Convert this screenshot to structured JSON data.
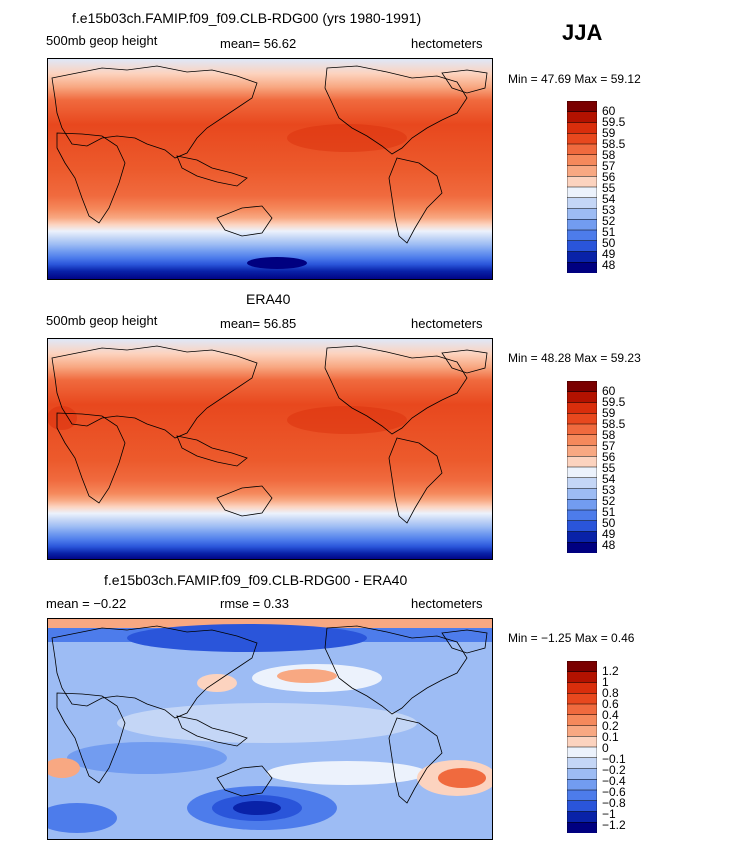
{
  "season": "JJA",
  "panels": [
    {
      "title": "f.e15b03ch.FAMIP.f09_f09.CLB-RDG00 (yrs 1980-1991)",
      "left_label": "500mb geop height",
      "mid_label": "mean=  56.62",
      "units": "hectometers",
      "minmax": "Min =  47.69 Max =  59.12",
      "colorbar": [
        "60",
        "59.5",
        "59",
        "58.5",
        "58",
        "57",
        "56",
        "55",
        "54",
        "53",
        "52",
        "51",
        "50",
        "49",
        "48"
      ],
      "colors": [
        "#7a0000",
        "#b31200",
        "#d92e0c",
        "#e8481e",
        "#f06a3e",
        "#f5895c",
        "#f8a882",
        "#fcd3bf",
        "#ecf2fc",
        "#c4d6f6",
        "#9dbcf4",
        "#729cf0",
        "#4d7ceb",
        "#2a55da",
        "#0922a8",
        "#000080"
      ]
    },
    {
      "title": "ERA40",
      "left_label": "500mb geop height",
      "mid_label": "mean=  56.85",
      "units": "hectometers",
      "minmax": "Min =  48.28 Max =  59.23",
      "colorbar": [
        "60",
        "59.5",
        "59",
        "58.5",
        "58",
        "57",
        "56",
        "55",
        "54",
        "53",
        "52",
        "51",
        "50",
        "49",
        "48"
      ],
      "colors": [
        "#7a0000",
        "#b31200",
        "#d92e0c",
        "#e8481e",
        "#f06a3e",
        "#f5895c",
        "#f8a882",
        "#fcd3bf",
        "#ecf2fc",
        "#c4d6f6",
        "#9dbcf4",
        "#729cf0",
        "#4d7ceb",
        "#2a55da",
        "#0922a8",
        "#000080"
      ]
    },
    {
      "title": "f.e15b03ch.FAMIP.f09_f09.CLB-RDG00 - ERA40",
      "left_label": "mean =  −0.22",
      "mid_label": "rmse =   0.33",
      "units": "hectometers",
      "minmax": "Min =  −1.25 Max =   0.46",
      "colorbar": [
        "1.2",
        "1",
        "0.8",
        "0.6",
        "0.4",
        "0.2",
        "0.1",
        "0",
        "−0.1",
        "−0.2",
        "−0.4",
        "−0.6",
        "−0.8",
        "−1",
        "−1.2"
      ],
      "colors": [
        "#7a0000",
        "#b31200",
        "#d92e0c",
        "#e8481e",
        "#f06a3e",
        "#f5895c",
        "#f8a882",
        "#fcd3bf",
        "#ecf2fc",
        "#c4d6f6",
        "#9dbcf4",
        "#729cf0",
        "#4d7ceb",
        "#2a55da",
        "#0922a8",
        "#000080"
      ]
    }
  ]
}
